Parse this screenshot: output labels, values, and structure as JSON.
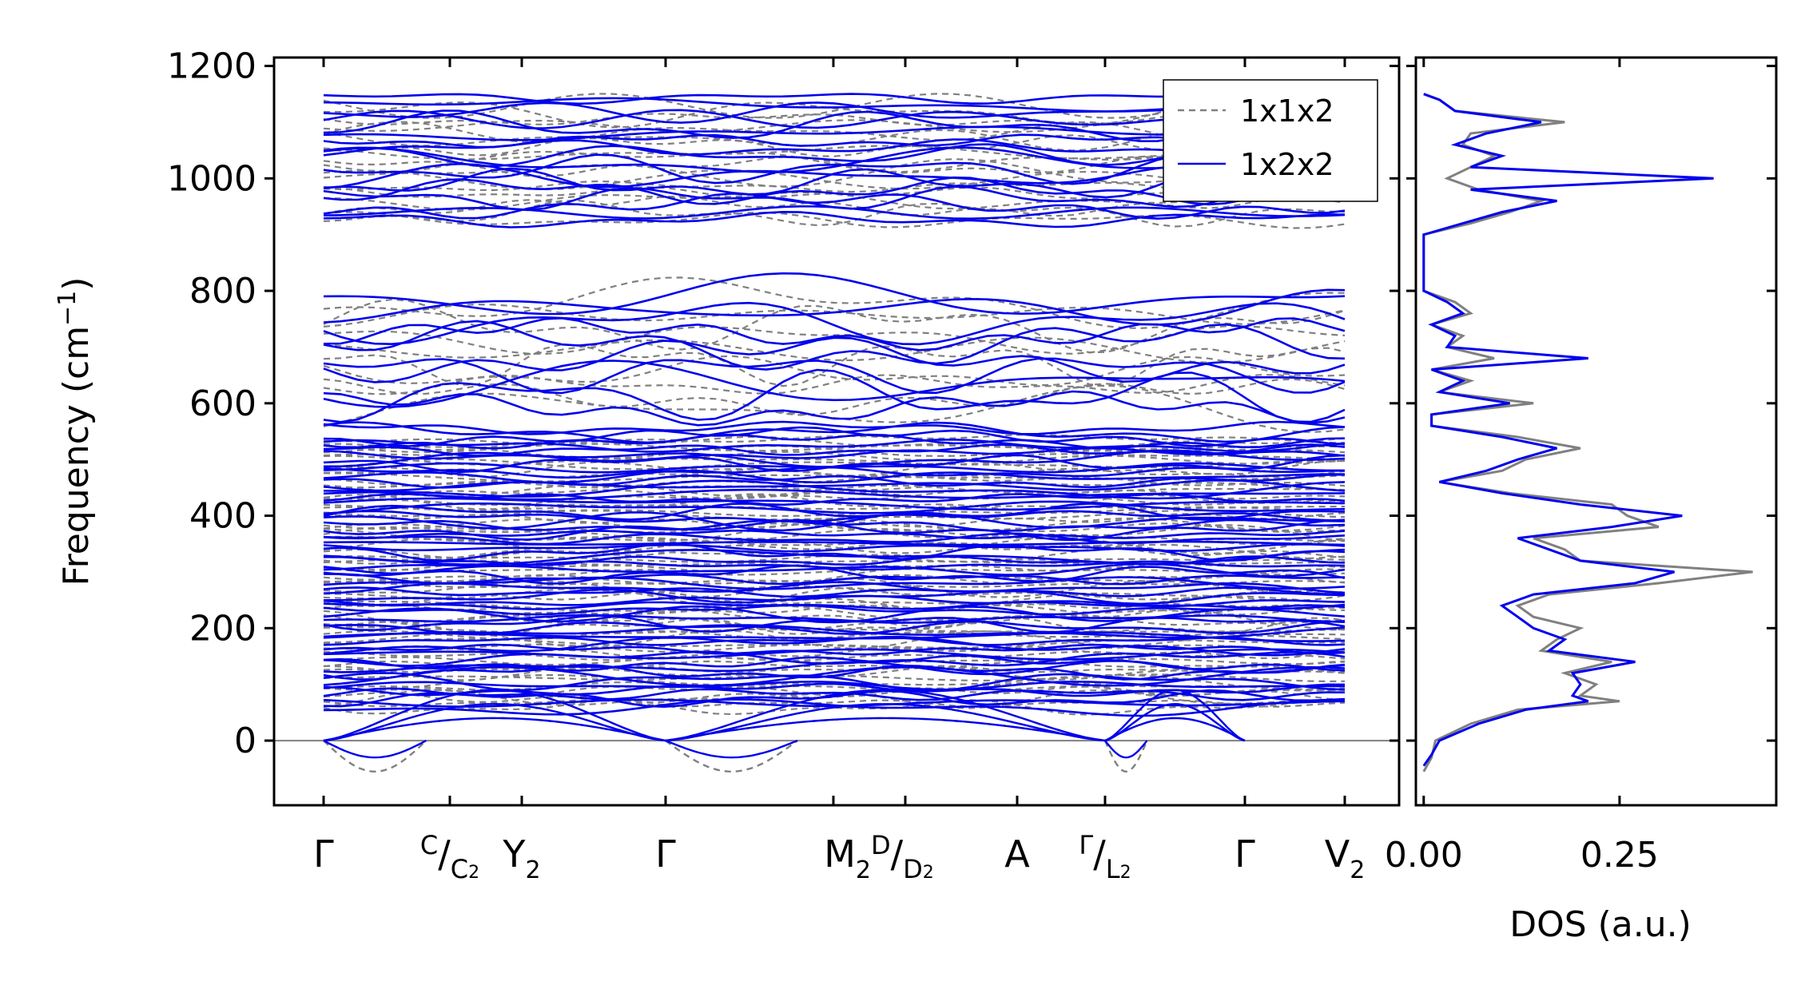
{
  "chart_data": [
    {
      "type": "line",
      "panel": "phonon-band-structure",
      "ylabel": "Frequency (cm",
      "ylabel_sup": "−1",
      "ylabel_tail": ")",
      "ylim": [
        -115,
        1215
      ],
      "yticks": [
        0,
        200,
        400,
        600,
        800,
        1000,
        1200
      ],
      "ytick_labels": [
        "0",
        "200",
        "400",
        "600",
        "800",
        "1000",
        "1200"
      ],
      "zero_line": 0,
      "kpoints": [
        {
          "main": "Γ",
          "pre_sup": "",
          "sup": "",
          "sub_base": "",
          "sub": ""
        },
        {
          "main": "",
          "pre_sup": "C",
          "sup": "",
          "sub_base": "C",
          "sub": "2"
        },
        {
          "main": "Y",
          "pre_sup": "",
          "sup": "",
          "sub_base": "",
          "sub": "2"
        },
        {
          "main": "Γ",
          "pre_sup": "",
          "sup": "",
          "sub_base": "",
          "sub": ""
        },
        {
          "main": "M",
          "pre_sup": "",
          "sup": "D",
          "sub_base": "D",
          "sub": "2",
          "main_sub": "2"
        },
        {
          "main": "A",
          "pre_sup": "",
          "sup": "",
          "sub_base": "",
          "sub": ""
        },
        {
          "main": "",
          "pre_sup": "Γ",
          "sup": "",
          "sub_base": "L",
          "sub": "2"
        },
        {
          "main": "Γ",
          "pre_sup": "",
          "sup": "",
          "sub_base": "",
          "sub": ""
        },
        {
          "main": "V",
          "pre_sup": "",
          "sup": "",
          "sub_base": "",
          "sub": "2"
        }
      ],
      "segment_breaks": [
        0,
        1,
        2,
        3,
        4,
        5,
        6,
        7,
        8
      ],
      "series": [
        {
          "name": "1x1x2",
          "color": "#808080",
          "style": "dashed",
          "band_groups": {
            "high_range": [
              920,
              1135
            ],
            "high_count": 18,
            "mid_range": [
              580,
              790
            ],
            "mid_count": 10,
            "low_range": [
              55,
              540
            ],
            "low_count": 64,
            "acoustic_min": -55
          }
        },
        {
          "name": "1x2x2",
          "color": "#0000ee",
          "style": "solid",
          "band_groups": {
            "high_range": [
              920,
              1150
            ],
            "high_count": 18,
            "mid_range": [
              580,
              800
            ],
            "mid_count": 10,
            "low_range": [
              55,
              560
            ],
            "low_count": 64,
            "acoustic_min": -30
          }
        }
      ],
      "legend": {
        "placement": "top-right",
        "entries": [
          "1x1x2",
          "1x2x2"
        ]
      }
    },
    {
      "type": "line",
      "panel": "density-of-states",
      "xlabel": "DOS (a.u.)",
      "xlim": [
        -0.01,
        0.45
      ],
      "xticks": [
        0.0,
        0.25
      ],
      "xtick_labels": [
        "0.00",
        "0.25"
      ],
      "ylim": [
        -115,
        1215
      ],
      "series": [
        {
          "name": "1x1x2",
          "color": "#808080",
          "freq": [
            -55,
            -30,
            0,
            30,
            55,
            70,
            80,
            100,
            120,
            140,
            160,
            180,
            200,
            220,
            240,
            260,
            280,
            300,
            320,
            340,
            360,
            380,
            400,
            420,
            440,
            460,
            480,
            500,
            520,
            540,
            560,
            580,
            600,
            620,
            640,
            660,
            680,
            700,
            720,
            740,
            760,
            780,
            800,
            850,
            900,
            920,
            940,
            960,
            980,
            1000,
            1020,
            1040,
            1060,
            1080,
            1100,
            1120,
            1140,
            1150
          ],
          "dos": [
            0.0,
            0.01,
            0.015,
            0.06,
            0.12,
            0.25,
            0.2,
            0.22,
            0.18,
            0.24,
            0.15,
            0.17,
            0.2,
            0.14,
            0.12,
            0.16,
            0.3,
            0.42,
            0.2,
            0.18,
            0.14,
            0.3,
            0.26,
            0.24,
            0.11,
            0.02,
            0.1,
            0.13,
            0.2,
            0.12,
            0.01,
            0.01,
            0.14,
            0.02,
            0.06,
            0.01,
            0.09,
            0.03,
            0.05,
            0.01,
            0.06,
            0.04,
            0.0,
            0.0,
            0.0,
            0.06,
            0.11,
            0.15,
            0.07,
            0.03,
            0.06,
            0.09,
            0.05,
            0.06,
            0.18,
            0.04,
            0.02,
            0.0
          ]
        },
        {
          "name": "1x2x2",
          "color": "#0000ee",
          "freq": [
            -45,
            -25,
            0,
            30,
            55,
            70,
            80,
            100,
            120,
            140,
            160,
            180,
            200,
            220,
            240,
            260,
            280,
            300,
            320,
            340,
            360,
            380,
            400,
            420,
            440,
            460,
            480,
            500,
            520,
            540,
            560,
            580,
            600,
            620,
            640,
            660,
            680,
            700,
            720,
            740,
            760,
            780,
            800,
            850,
            900,
            920,
            940,
            960,
            980,
            1000,
            1020,
            1040,
            1060,
            1080,
            1100,
            1120,
            1140,
            1150
          ],
          "dos": [
            0.0,
            0.01,
            0.02,
            0.07,
            0.13,
            0.21,
            0.19,
            0.2,
            0.19,
            0.27,
            0.16,
            0.18,
            0.14,
            0.12,
            0.1,
            0.14,
            0.27,
            0.32,
            0.2,
            0.16,
            0.12,
            0.24,
            0.33,
            0.2,
            0.1,
            0.02,
            0.08,
            0.12,
            0.17,
            0.1,
            0.01,
            0.01,
            0.11,
            0.02,
            0.05,
            0.01,
            0.21,
            0.03,
            0.04,
            0.01,
            0.05,
            0.03,
            0.0,
            0.0,
            0.0,
            0.05,
            0.1,
            0.17,
            0.06,
            0.37,
            0.06,
            0.1,
            0.04,
            0.08,
            0.15,
            0.04,
            0.02,
            0.0
          ]
        }
      ]
    }
  ]
}
